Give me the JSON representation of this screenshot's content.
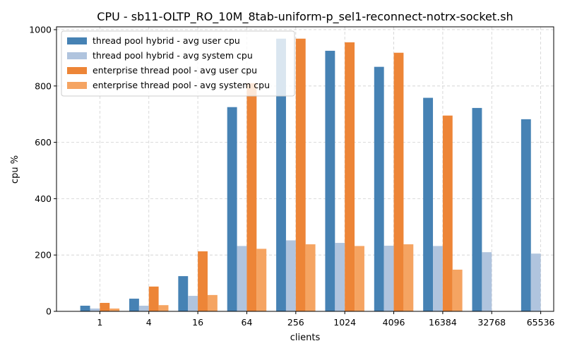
{
  "chart_data": {
    "type": "bar",
    "title": "CPU - sb11-OLTP_RO_10M_8tab-uniform-p_sel1-reconnect-notrx-socket.sh",
    "xlabel": "clients",
    "ylabel": "cpu %",
    "ylim": [
      0,
      1010
    ],
    "yticks": [
      0,
      200,
      400,
      600,
      800,
      1000
    ],
    "grid": true,
    "legend_position": "upper-left",
    "categories": [
      "1",
      "4",
      "16",
      "64",
      "256",
      "1024",
      "4096",
      "16384",
      "32768",
      "65536"
    ],
    "series": [
      {
        "name": "thread pool hybrid - avg user cpu",
        "color": "#4682b4",
        "values": [
          20,
          45,
          125,
          725,
          968,
          925,
          868,
          758,
          722,
          682
        ]
      },
      {
        "name": "thread pool hybrid - avg system cpu",
        "color": "#b0c4de",
        "values": [
          10,
          20,
          55,
          232,
          252,
          243,
          233,
          232,
          210,
          205
        ]
      },
      {
        "name": "enterprise thread pool - avg user cpu",
        "color": "#ed8537",
        "values": [
          30,
          88,
          213,
          810,
          968,
          955,
          918,
          695,
          0,
          0
        ]
      },
      {
        "name": "enterprise thread pool - avg system cpu",
        "color": "#f5a462",
        "values": [
          10,
          22,
          58,
          222,
          238,
          232,
          238,
          148,
          0,
          0
        ]
      }
    ]
  }
}
